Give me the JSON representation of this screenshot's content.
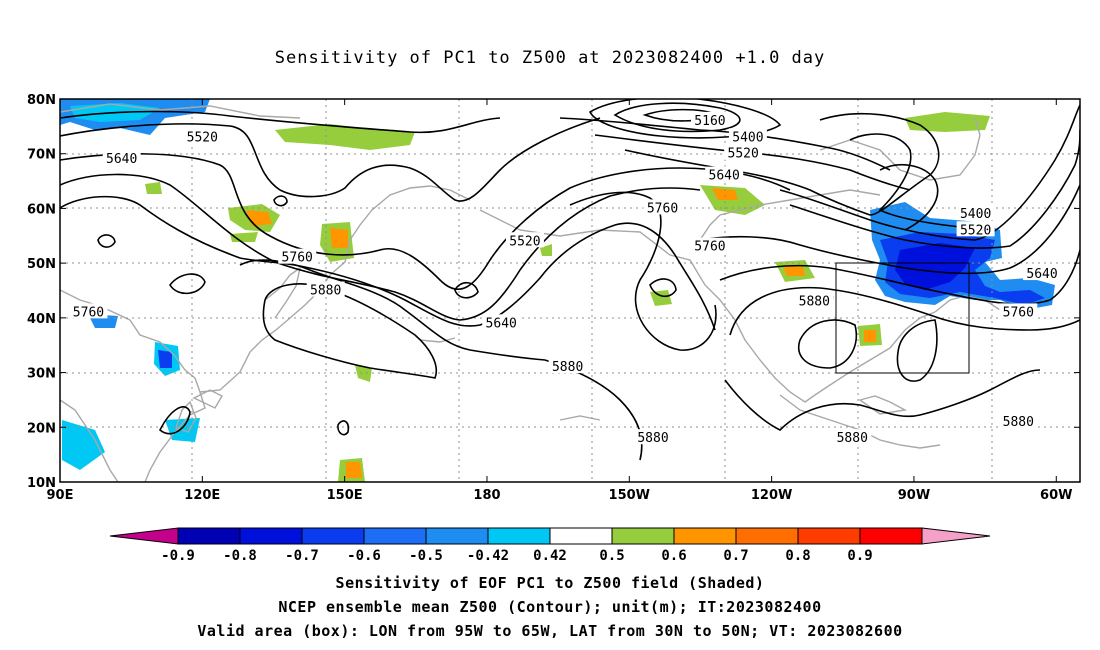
{
  "title": "Sensitivity of PC1 to Z500 at 2023082400 +1.0 day",
  "map": {
    "lon_range": [
      90,
      305
    ],
    "lat_range": [
      10,
      80
    ],
    "lat_ticks": [
      {
        "value": 80,
        "label": "80N"
      },
      {
        "value": 70,
        "label": "70N"
      },
      {
        "value": 60,
        "label": "60N"
      },
      {
        "value": 50,
        "label": "50N"
      },
      {
        "value": 40,
        "label": "40N"
      },
      {
        "value": 30,
        "label": "30N"
      },
      {
        "value": 20,
        "label": "20N"
      },
      {
        "value": 10,
        "label": "10N"
      }
    ],
    "lon_ticks": [
      {
        "value": 90,
        "label": "90E"
      },
      {
        "value": 120,
        "label": "120E"
      },
      {
        "value": 150,
        "label": "150E"
      },
      {
        "value": 180,
        "label": "180"
      },
      {
        "value": 210,
        "label": "150W"
      },
      {
        "value": 240,
        "label": "120W"
      },
      {
        "value": 270,
        "label": "90W"
      },
      {
        "value": 300,
        "label": "60W"
      }
    ],
    "box": {
      "lon_west": 265,
      "lon_east": 295,
      "lat_south": 30,
      "lat_north": 50
    },
    "contour_labels": [
      {
        "text": "5520",
        "lon": 120,
        "lat": 73
      },
      {
        "text": "5640",
        "lon": 103,
        "lat": 69
      },
      {
        "text": "5760",
        "lon": 96,
        "lat": 41
      },
      {
        "text": "5760",
        "lon": 140,
        "lat": 51
      },
      {
        "text": "5880",
        "lon": 146,
        "lat": 45
      },
      {
        "text": "5520",
        "lon": 188,
        "lat": 54
      },
      {
        "text": "5640",
        "lon": 183,
        "lat": 39
      },
      {
        "text": "5880",
        "lon": 197,
        "lat": 31
      },
      {
        "text": "5880",
        "lon": 215,
        "lat": 18
      },
      {
        "text": "5760",
        "lon": 217,
        "lat": 60
      },
      {
        "text": "5760",
        "lon": 227,
        "lat": 53
      },
      {
        "text": "5160",
        "lon": 227,
        "lat": 76
      },
      {
        "text": "5400",
        "lon": 235,
        "lat": 73
      },
      {
        "text": "5520",
        "lon": 234,
        "lat": 70
      },
      {
        "text": "5640",
        "lon": 230,
        "lat": 66
      },
      {
        "text": "5880",
        "lon": 249,
        "lat": 43
      },
      {
        "text": "5880",
        "lon": 257,
        "lat": 18
      },
      {
        "text": "5400",
        "lon": 283,
        "lat": 59
      },
      {
        "text": "5520",
        "lon": 283,
        "lat": 56
      },
      {
        "text": "5640",
        "lon": 297,
        "lat": 48
      },
      {
        "text": "5760",
        "lon": 292,
        "lat": 41
      },
      {
        "text": "5880",
        "lon": 292,
        "lat": 21
      }
    ]
  },
  "colorbar": {
    "labels": [
      "-0.9",
      "-0.8",
      "-0.7",
      "-0.6",
      "-0.5",
      "-0.42",
      "0.42",
      "0.5",
      "0.6",
      "0.7",
      "0.8",
      "0.9"
    ],
    "colors": [
      "#c2008c",
      "#0000b4",
      "#0010dc",
      "#0a3cf0",
      "#1e6ef5",
      "#1e8cf0",
      "#00c8f5",
      "#ffffff",
      "#96cd3c",
      "#ff9600",
      "#ff6e00",
      "#ff3c00",
      "#ff0000",
      "#f5a0c8"
    ]
  },
  "captions": [
    "Sensitivity of EOF PC1 to Z500 field (Shaded)",
    "NCEP ensemble mean Z500 (Contour); unit(m); IT:2023082400",
    "Valid area (box): LON from 95W to 65W, LAT from 30N to 50N; VT: 2023082600"
  ]
}
